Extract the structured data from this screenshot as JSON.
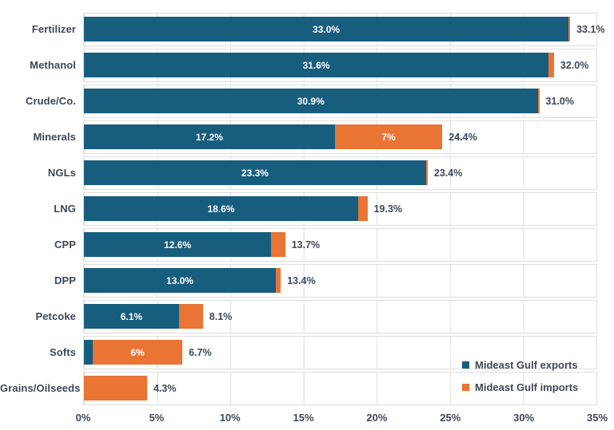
{
  "chart_data": {
    "type": "bar",
    "orientation": "horizontal",
    "stacked": true,
    "title": "",
    "xlabel": "",
    "ylabel": "",
    "xlim": [
      0,
      35
    ],
    "grid": "vertical-per-row-band",
    "categories": [
      "Fertilizer",
      "Methanol",
      "Crude/Co.",
      "Minerals",
      "NGLs",
      "LNG",
      "CPP",
      "DPP",
      "Petcoke",
      "Softs",
      "Grains/Oilseeds"
    ],
    "series": [
      {
        "name": "Mideast Gulf exports",
        "color": "#175d7e",
        "values": [
          33.0,
          31.6,
          30.9,
          17.2,
          23.3,
          18.6,
          12.6,
          13.0,
          6.1,
          0.7,
          0.0
        ]
      },
      {
        "name": "Mideast Gulf imports",
        "color": "#e97434",
        "values": [
          0.1,
          0.4,
          0.1,
          7.2,
          0.1,
          0.7,
          1.1,
          0.4,
          2.0,
          6.0,
          4.3
        ]
      }
    ],
    "totals": [
      33.1,
      32.0,
      31.0,
      24.4,
      23.4,
      19.3,
      13.7,
      13.4,
      8.1,
      6.7,
      4.3
    ],
    "segment_labels": {
      "exports": [
        "33.0%",
        "31.6%",
        "30.9%",
        "17.2%",
        "23.3%",
        "18.6%",
        "12.6%",
        "13.0%",
        "6.1%",
        null,
        null
      ],
      "imports": [
        null,
        null,
        null,
        "7%",
        null,
        null,
        null,
        null,
        null,
        "6%",
        null
      ]
    },
    "total_labels": [
      "33.1%",
      "32.0%",
      "31.0%",
      "24.4%",
      "23.4%",
      "19.3%",
      "13.7%",
      "13.4%",
      "8.1%",
      "6.7%",
      "4.3%"
    ],
    "x_ticks": [
      "0%",
      "5%",
      "10%",
      "15%",
      "20%",
      "25%",
      "30%",
      "35%"
    ],
    "legend": {
      "position": "inside-bottom-right",
      "items": [
        {
          "label": "Mideast Gulf exports",
          "color": "#175d7e"
        },
        {
          "label": "Mideast Gulf imports",
          "color": "#e97434"
        }
      ]
    }
  },
  "colors": {
    "exports": "#175d7e",
    "imports": "#e97434",
    "grid": "#dedede",
    "text": "#3d4856",
    "bar_label": "#ffffff",
    "background": "#ffffff"
  }
}
